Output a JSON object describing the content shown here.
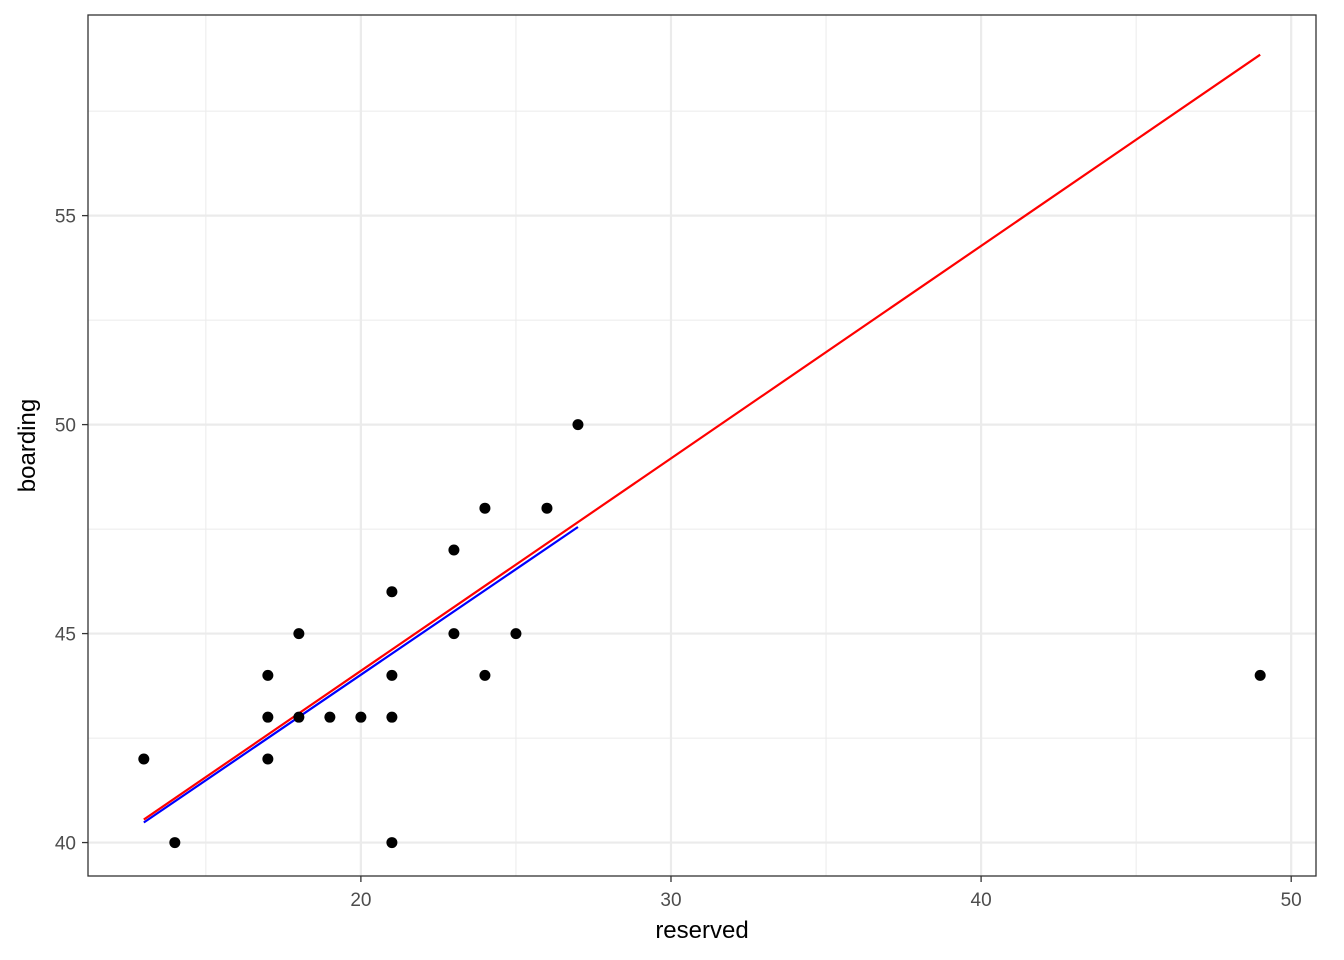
{
  "chart_data": {
    "type": "scatter",
    "title": "",
    "xlabel": "reserved",
    "ylabel": "boarding",
    "xlim": [
      11.2,
      50.8
    ],
    "ylim": [
      39.2,
      59.8
    ],
    "x_ticks": [
      20,
      30,
      40,
      50
    ],
    "x_minor_ticks": [
      15,
      25,
      35,
      45
    ],
    "y_ticks": [
      40,
      45,
      50,
      55
    ],
    "y_minor_ticks": [
      42.5,
      47.5,
      52.5,
      57.5
    ],
    "x_tick_labels": [
      "20",
      "30",
      "40",
      "50"
    ],
    "y_tick_labels": [
      "40",
      "45",
      "50",
      "55"
    ],
    "grid": true,
    "legend": "none",
    "points": [
      {
        "x": 13,
        "y": 42
      },
      {
        "x": 14,
        "y": 40
      },
      {
        "x": 17,
        "y": 44
      },
      {
        "x": 17,
        "y": 43
      },
      {
        "x": 17,
        "y": 42
      },
      {
        "x": 18,
        "y": 45
      },
      {
        "x": 18,
        "y": 43
      },
      {
        "x": 19,
        "y": 43
      },
      {
        "x": 20,
        "y": 43
      },
      {
        "x": 21,
        "y": 46
      },
      {
        "x": 21,
        "y": 44
      },
      {
        "x": 21,
        "y": 43
      },
      {
        "x": 21,
        "y": 40
      },
      {
        "x": 23,
        "y": 47
      },
      {
        "x": 23,
        "y": 45
      },
      {
        "x": 24,
        "y": 48
      },
      {
        "x": 24,
        "y": 44
      },
      {
        "x": 25,
        "y": 45
      },
      {
        "x": 26,
        "y": 48
      },
      {
        "x": 27,
        "y": 50
      },
      {
        "x": 49,
        "y": 44
      }
    ],
    "lines": [
      {
        "color": "#ff0000",
        "x": [
          13,
          49
        ],
        "y": [
          40.55,
          58.85
        ]
      },
      {
        "color": "#0000ff",
        "x": [
          13,
          27
        ],
        "y": [
          40.48,
          47.55
        ]
      }
    ],
    "colors": {
      "points": "#000000",
      "grid": "#ebebeb",
      "panel_border": "#333333",
      "tick": "#333333"
    }
  }
}
